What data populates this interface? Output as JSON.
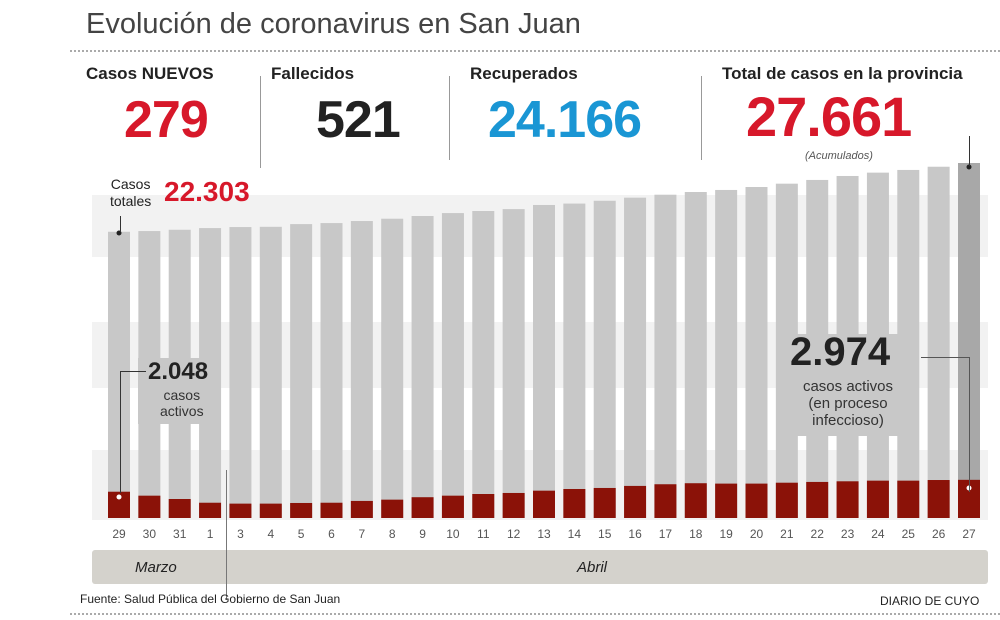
{
  "title": "Evolución de coronavirus en San Juan",
  "stats": {
    "new_cases": {
      "label": "Casos NUEVOS",
      "value": "279",
      "color": "#d7182a"
    },
    "deaths": {
      "label": "Fallecidos",
      "value": "521",
      "color": "#222222"
    },
    "recovered": {
      "label": "Recuperados",
      "value": "24.166",
      "color": "#1a96d4"
    },
    "total": {
      "label": "Total de casos en la provincia",
      "value": "27.661",
      "note": "(Acumulados)",
      "color": "#d7182a"
    }
  },
  "annotations": {
    "start_total_label_1": "Casos",
    "start_total_label_2": "totales",
    "start_total_value": "22.303",
    "start_active_value": "2.048",
    "start_active_label_1": "casos",
    "start_active_label_2": "activos",
    "end_active_value": "2.974",
    "end_active_label_1": "casos activos",
    "end_active_label_2": "(en proceso",
    "end_active_label_3": "infeccioso)"
  },
  "months": {
    "march": "Marzo",
    "april": "Abril"
  },
  "source": "Fuente: Salud Pública del Gobierno de San Juan",
  "credit": "DIARIO DE CUYO",
  "chart_data": {
    "type": "bar",
    "categories": [
      "29",
      "30",
      "31",
      "1",
      "3",
      "4",
      "5",
      "6",
      "7",
      "8",
      "9",
      "10",
      "11",
      "12",
      "13",
      "14",
      "15",
      "16",
      "17",
      "18",
      "19",
      "20",
      "21",
      "22",
      "23",
      "24",
      "25",
      "26",
      "27"
    ],
    "series": [
      {
        "name": "Casos totales",
        "color": "#c8c8c8",
        "values": [
          22303,
          22360,
          22460,
          22590,
          22670,
          22690,
          22900,
          22980,
          23140,
          23320,
          23530,
          23760,
          23920,
          24070,
          24390,
          24500,
          24720,
          24960,
          25190,
          25400,
          25560,
          25790,
          26050,
          26340,
          26650,
          26910,
          27120,
          27370,
          27661
        ]
      },
      {
        "name": "casos activos",
        "color": "#8b1208",
        "values": [
          2048,
          1740,
          1480,
          1190,
          1120,
          1120,
          1170,
          1190,
          1330,
          1430,
          1620,
          1740,
          1870,
          1950,
          2130,
          2260,
          2340,
          2500,
          2630,
          2710,
          2680,
          2680,
          2750,
          2810,
          2860,
          2910,
          2910,
          2960,
          2974
        ]
      }
    ],
    "overlay": "active bars drawn over total bars",
    "highlight_last_color": "#a8a8a8",
    "ylim": [
      0,
      27661
    ],
    "grid": false
  }
}
